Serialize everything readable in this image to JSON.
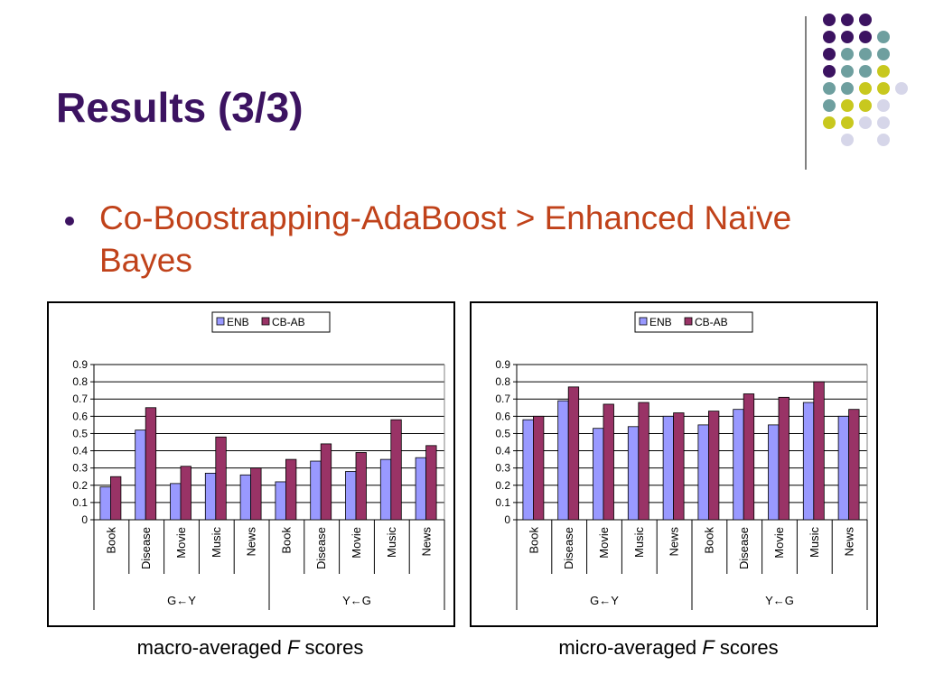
{
  "slide": {
    "title": "Results (3/3)",
    "bullet": "Co-Boostrapping-AdaBoost > Enhanced Naïve Bayes"
  },
  "captions": [
    {
      "pre": "macro-averaged ",
      "var": "F",
      "post": " scores"
    },
    {
      "pre": "micro-averaged ",
      "var": "F",
      "post": " scores"
    }
  ],
  "colors": {
    "title": "#3c1361",
    "bullet": "#c0421a",
    "enb": "#9999ff",
    "cbab": "#993366",
    "dots": [
      "#3c1361",
      "#6e9f9f",
      "#c8c81e",
      "#d6d6e9"
    ]
  },
  "chart_data": [
    {
      "type": "bar",
      "title": "",
      "xlabel": "",
      "ylabel": "",
      "ylim": [
        0,
        0.9
      ],
      "yticks": [
        "0",
        "0.1",
        "0.2",
        "0.3",
        "0.4",
        "0.5",
        "0.6",
        "0.7",
        "0.8",
        "0.9"
      ],
      "grid": true,
      "legend": "top-center",
      "categories": [
        "Book",
        "Disease",
        "Movie",
        "Music",
        "News",
        "Book",
        "Disease",
        "Movie",
        "Music",
        "News"
      ],
      "groups": [
        "G←Y",
        "Y←G"
      ],
      "series": [
        {
          "name": "ENB",
          "values": [
            0.19,
            0.52,
            0.21,
            0.27,
            0.26,
            0.22,
            0.34,
            0.28,
            0.35,
            0.36
          ]
        },
        {
          "name": "CB-AB",
          "values": [
            0.25,
            0.65,
            0.31,
            0.48,
            0.3,
            0.35,
            0.44,
            0.39,
            0.58,
            0.43
          ]
        }
      ]
    },
    {
      "type": "bar",
      "title": "",
      "xlabel": "",
      "ylabel": "",
      "ylim": [
        0,
        0.9
      ],
      "yticks": [
        "0",
        "0.1",
        "0.2",
        "0.3",
        "0.4",
        "0.5",
        "0.6",
        "0.7",
        "0.8",
        "0.9"
      ],
      "grid": true,
      "legend": "top-center",
      "categories": [
        "Book",
        "Disease",
        "Movie",
        "Music",
        "News",
        "Book",
        "Disease",
        "Movie",
        "Music",
        "News"
      ],
      "groups": [
        "G←Y",
        "Y←G"
      ],
      "series": [
        {
          "name": "ENB",
          "values": [
            0.58,
            0.69,
            0.53,
            0.54,
            0.6,
            0.55,
            0.64,
            0.55,
            0.68,
            0.6
          ]
        },
        {
          "name": "CB-AB",
          "values": [
            0.6,
            0.77,
            0.67,
            0.68,
            0.62,
            0.63,
            0.73,
            0.71,
            0.8,
            0.64
          ]
        }
      ]
    }
  ]
}
